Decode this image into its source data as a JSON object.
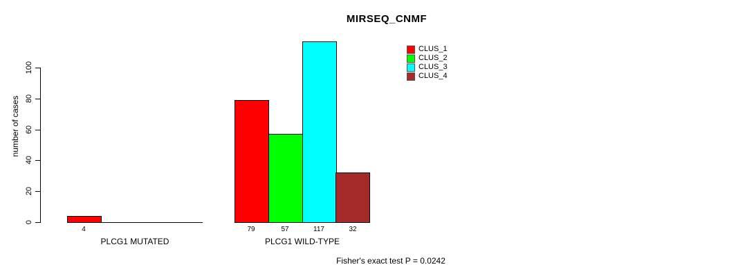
{
  "chart_data": {
    "type": "bar",
    "title": "MIRSEQ_CNMF",
    "ylabel": "number of cases",
    "xlabel": "",
    "categories": [
      "PLCG1 MUTATED",
      "PLCG1 WILD-TYPE"
    ],
    "series": [
      {
        "name": "CLUS_1",
        "color": "#FF0000",
        "values": [
          4,
          79
        ]
      },
      {
        "name": "CLUS_2",
        "color": "#00FF00",
        "values": [
          0,
          57
        ]
      },
      {
        "name": "CLUS_3",
        "color": "#00FFFF",
        "values": [
          0,
          117
        ]
      },
      {
        "name": "CLUS_4",
        "color": "#A52A2A",
        "values": [
          0,
          32
        ]
      }
    ],
    "bar_value_labels": [
      [
        4,
        null,
        null,
        null
      ],
      [
        79,
        57,
        117,
        32
      ]
    ],
    "yticks": [
      0,
      20,
      40,
      60,
      80,
      100
    ],
    "ylim": [
      0,
      117
    ],
    "grid": false,
    "legend_position": "top-right",
    "annotation": "Fisher's exact test P = 0.0242"
  }
}
